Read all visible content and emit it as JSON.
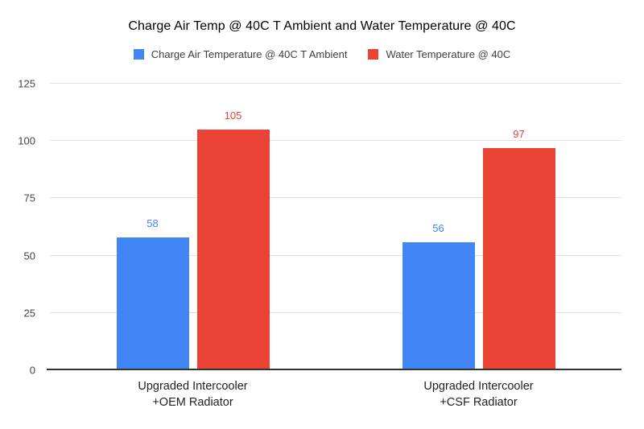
{
  "chart_data": {
    "type": "bar",
    "title": "Charge Air Temp @ 40C T Ambient and Water Temperature @ 40C",
    "categories": [
      "Upgraded Intercooler\n+OEM Radiator",
      "Upgraded Intercooler\n+CSF Radiator"
    ],
    "series": [
      {
        "name": "Charge Air Temperature @ 40C T Ambient",
        "color": "#4285F4",
        "values": [
          58,
          56
        ]
      },
      {
        "name": "Water Temperature @ 40C",
        "color": "#EA4335",
        "values": [
          105,
          97
        ]
      }
    ],
    "xlabel": "",
    "ylabel": "",
    "ylim": [
      0,
      125
    ],
    "yticks": [
      0,
      25,
      50,
      75,
      100,
      125
    ],
    "grid": true,
    "legend_position": "top",
    "data_labels": true,
    "background": "#ffffff",
    "axis_line_color": "#333333",
    "gridline_color": "#e3e3e3"
  }
}
